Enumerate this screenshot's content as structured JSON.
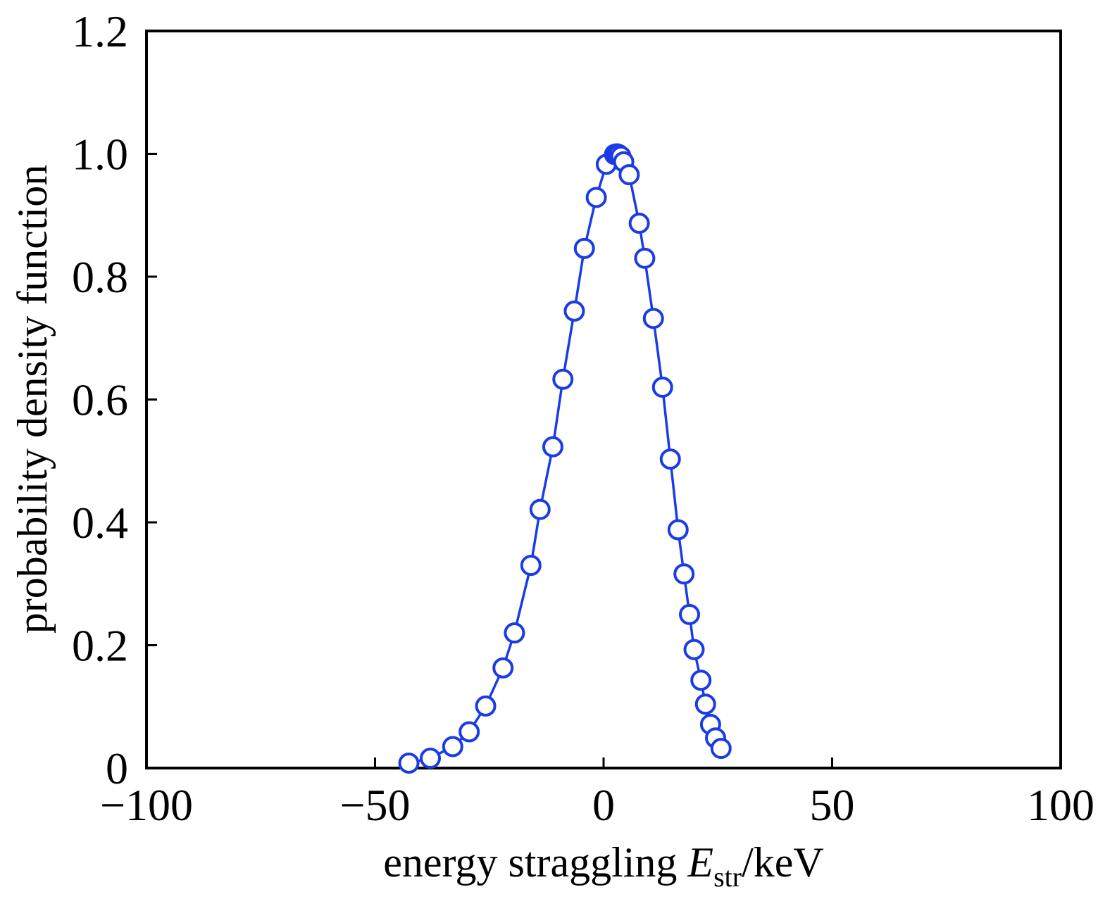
{
  "colors": {
    "series": "#1a3ce6",
    "axis": "#000000",
    "background": "#ffffff"
  },
  "chart_data": {
    "type": "line",
    "title": "",
    "xlabel_prefix": "energy straggling ",
    "xlabel_symbol": "E",
    "xlabel_subscript": "str",
    "xlabel_suffix": "/keV",
    "ylabel": "probability density function",
    "xlim": [
      -100,
      100
    ],
    "ylim": [
      0,
      1.2
    ],
    "x_ticks": [
      -100,
      -50,
      0,
      50,
      100
    ],
    "x_tick_labels": [
      "−100",
      "−50",
      "0",
      "50",
      "100"
    ],
    "y_ticks": [
      0,
      0.2,
      0.4,
      0.6,
      0.8,
      1.0,
      1.2
    ],
    "y_tick_labels": [
      "0",
      "0.2",
      "0.4",
      "0.6",
      "0.8",
      "1.0",
      "1.2"
    ],
    "grid": false,
    "series": [
      {
        "name": "probability density",
        "marker": "open-circle",
        "line": true,
        "x": [
          -42.6,
          -37.9,
          -33.0,
          -29.4,
          -25.8,
          -22.0,
          -19.5,
          -15.9,
          -13.9,
          -11.1,
          -8.9,
          -6.4,
          -4.2,
          -1.6,
          0.6,
          2.4,
          2.9,
          3.3,
          3.8,
          4.4,
          5.6,
          7.8,
          9.0,
          10.9,
          12.9,
          14.6,
          16.3,
          17.6,
          18.8,
          19.8,
          21.3,
          22.3,
          23.4,
          24.5,
          25.7
        ],
        "y": [
          0.008,
          0.016,
          0.035,
          0.059,
          0.101,
          0.163,
          0.22,
          0.33,
          0.421,
          0.523,
          0.633,
          0.744,
          0.846,
          0.929,
          0.983,
          0.999,
          1.0,
          0.999,
          0.996,
          0.987,
          0.966,
          0.887,
          0.83,
          0.732,
          0.62,
          0.503,
          0.388,
          0.316,
          0.25,
          0.193,
          0.143,
          0.104,
          0.071,
          0.049,
          0.032
        ]
      }
    ]
  }
}
